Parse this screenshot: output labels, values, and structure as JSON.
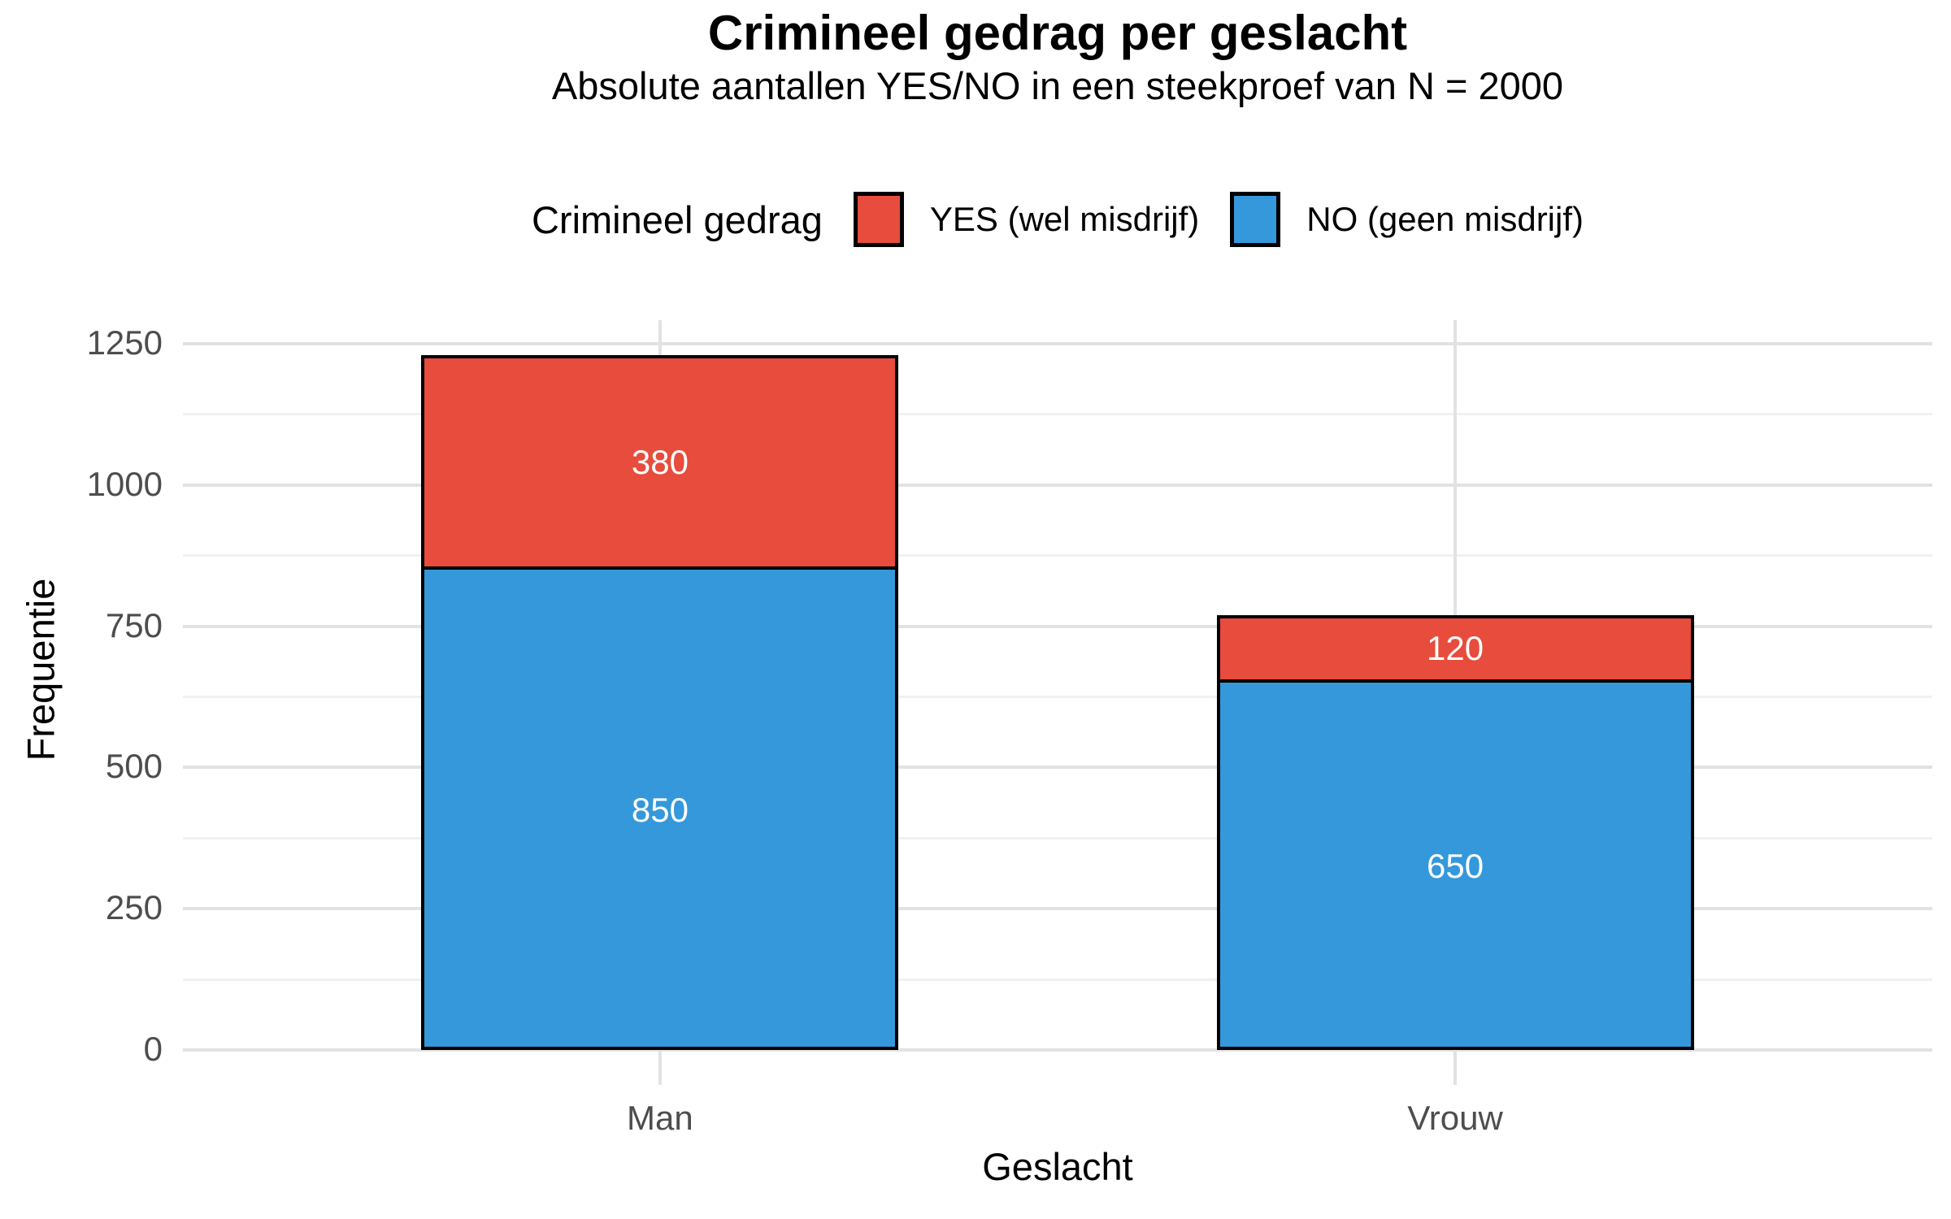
{
  "title": "Crimineel gedrag per geslacht",
  "subtitle": "Absolute aantallen YES/NO in een steekproef van N = 2000",
  "legend": {
    "title": "Crimineel gedrag",
    "items": [
      {
        "label": "YES (wel misdrijf)",
        "color": "#E74C3C"
      },
      {
        "label": "NO (geen misdrijf)",
        "color": "#3498DB"
      }
    ]
  },
  "chart_data": {
    "type": "bar",
    "stacked": true,
    "title": "Crimineel gedrag per geslacht",
    "subtitle": "Absolute aantallen YES/NO in een steekproef van N = 2000",
    "categories": [
      "Man",
      "Vrouw"
    ],
    "series": [
      {
        "name": "YES (wel misdrijf)",
        "color": "#E74C3C",
        "values": [
          380,
          120
        ]
      },
      {
        "name": "NO (geen misdrijf)",
        "color": "#3498DB",
        "values": [
          850,
          650
        ]
      }
    ],
    "xlabel": "Geslacht",
    "ylabel": "Frequentie",
    "yticks": [
      0,
      250,
      500,
      750,
      1000,
      1250
    ],
    "ylim": [
      0,
      1250
    ],
    "grid": "major and minor horizontal, major vertical at category centers",
    "legend_position": "top",
    "value_labels": {
      "shown": true,
      "color": "#FFFFFF",
      "position": "segment center"
    },
    "bar_border_color": "#000000",
    "colors": {
      "background": "#FFFFFF",
      "grid_major": "#E2E2E2",
      "grid_minor": "#F1F1F1",
      "tick_label": "#4D4D4D"
    }
  }
}
